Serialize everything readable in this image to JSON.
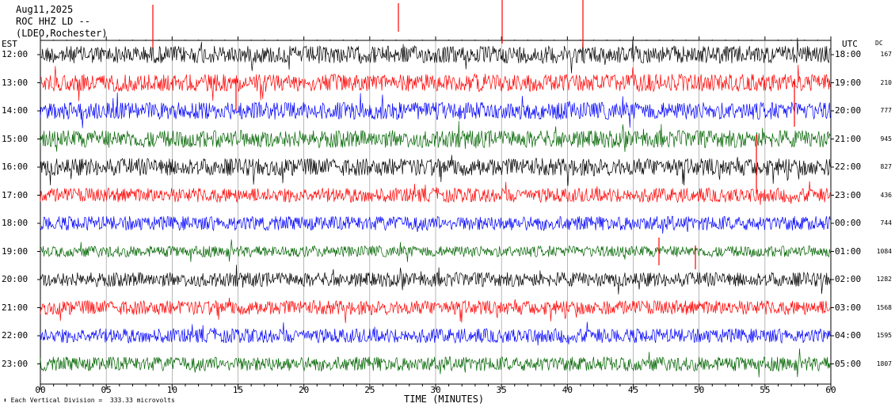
{
  "header": {
    "date": "Aug11,2025",
    "station": "ROC HHZ LD --",
    "location": "(LDEO,Rochester)"
  },
  "left_axis_title": "EST",
  "right_axis_title": "UTC",
  "dc_title": "DC",
  "chart_data": {
    "type": "line",
    "title": "",
    "xlabel": "TIME (MINUTES)",
    "xlim": [
      0,
      60
    ],
    "x_ticks": [
      "00",
      "05",
      "10",
      "15",
      "20",
      "25",
      "30",
      "35",
      "40",
      "45",
      "50",
      "55",
      "60"
    ],
    "grid": true,
    "series_colors": [
      "#000000",
      "#ff0000",
      "#0000ff",
      "#006400"
    ],
    "rows": [
      {
        "est": "12:00",
        "utc": "18:00",
        "dc": "167"
      },
      {
        "est": "13:00",
        "utc": "19:00",
        "dc": "210"
      },
      {
        "est": "14:00",
        "utc": "20:00",
        "dc": "777"
      },
      {
        "est": "15:00",
        "utc": "21:00",
        "dc": "945"
      },
      {
        "est": "16:00",
        "utc": "22:00",
        "dc": "827"
      },
      {
        "est": "17:00",
        "utc": "23:00",
        "dc": "436"
      },
      {
        "est": "18:00",
        "utc": "00:00",
        "dc": "744"
      },
      {
        "est": "19:00",
        "utc": "01:00",
        "dc": "1084"
      },
      {
        "est": "20:00",
        "utc": "02:00",
        "dc": "1282"
      },
      {
        "est": "21:00",
        "utc": "03:00",
        "dc": "1568"
      },
      {
        "est": "22:00",
        "utc": "04:00",
        "dc": "1595"
      },
      {
        "est": "23:00",
        "utc": "05:00",
        "dc": "1807"
      }
    ]
  },
  "footer_note": "Each Vertical Division =  333.33 microvolts"
}
